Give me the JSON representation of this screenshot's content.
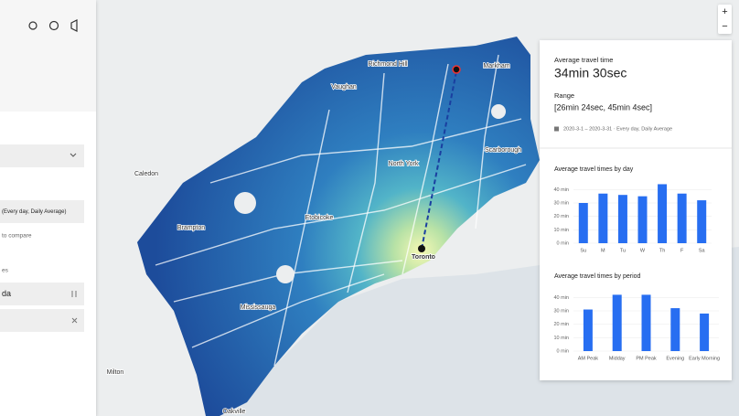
{
  "sidebar": {
    "date_field": "(Every day, Daily Average)",
    "compare_link": "to compare",
    "section_label": "es",
    "origin_field": "da"
  },
  "map": {
    "labels": [
      "Richmond Hill",
      "Markham",
      "Vaughan",
      "Caledon",
      "North York",
      "Scarborough",
      "Brampton",
      "Etobicoke",
      "Toronto",
      "Mississauga",
      "Milton",
      "Oakville"
    ],
    "zoom": [
      "+",
      "−"
    ]
  },
  "panel": {
    "travel_time_label": "Average travel time",
    "travel_time": "34min 30sec",
    "range_label": "Range",
    "range": "[26min 24sec, 45min 4sec]",
    "date_range": "2020-3-1 – 2020-3-31 · Every day, Daily Average"
  },
  "chart_data": [
    {
      "type": "bar",
      "title": "Average travel times by day",
      "categories": [
        "Su",
        "M",
        "Tu",
        "W",
        "Th",
        "F",
        "Sa"
      ],
      "values": [
        30,
        37,
        36,
        35,
        44,
        37,
        32
      ],
      "color": "#276ef1",
      "ylim": [
        0,
        45
      ],
      "yticks": [
        {
          "value": 0,
          "label": "0 min"
        },
        {
          "value": 10,
          "label": "10 min"
        },
        {
          "value": 20,
          "label": "20 min"
        },
        {
          "value": 30,
          "label": "30 min"
        },
        {
          "value": 40,
          "label": "40 min"
        }
      ]
    },
    {
      "type": "bar",
      "title": "Average travel times by period",
      "categories": [
        "AM Peak",
        "Midday",
        "PM Peak",
        "Evening",
        "Early Morning"
      ],
      "values": [
        31,
        42,
        42,
        32,
        28
      ],
      "color": "#276ef1",
      "ylim": [
        0,
        45
      ],
      "yticks": [
        {
          "value": 0,
          "label": "0 min"
        },
        {
          "value": 10,
          "label": "10 min"
        },
        {
          "value": 20,
          "label": "20 min"
        },
        {
          "value": 30,
          "label": "30 min"
        },
        {
          "value": 40,
          "label": "40 min"
        }
      ]
    }
  ]
}
